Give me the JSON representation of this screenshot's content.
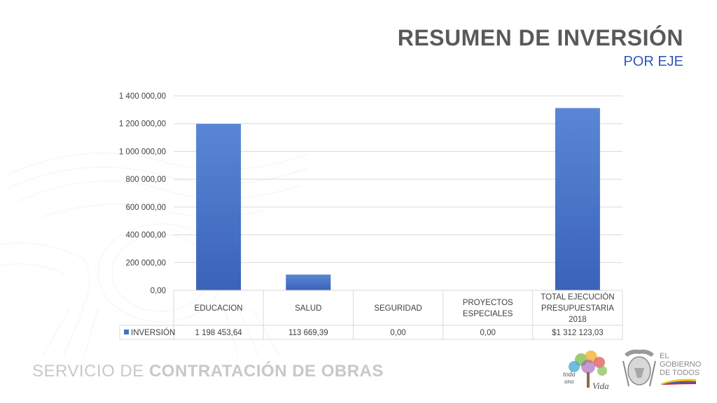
{
  "slide": {
    "title": "RESUMEN DE INVERSIÓN",
    "subtitle": "POR EJE"
  },
  "footer": {
    "org_prefix": "SERVICIO DE",
    "org_bold": "CONTRATACIÓN DE OBRAS",
    "logo1_line1": "toda",
    "logo1_line2": "una",
    "logo1_line3": "Vida",
    "logo2_line1": "EL",
    "logo2_line2": "GOBIERNO",
    "logo2_line3": "DE TODOS"
  },
  "colors": {
    "bar": "#4472c4",
    "bar_dark": "#3a63b8",
    "title": "#595959",
    "subtitle": "#2e58b8",
    "grid": "#d9d9d9"
  },
  "chart_data": {
    "type": "bar",
    "title": "",
    "xlabel": "",
    "ylabel": "",
    "ylim": [
      0,
      1400000
    ],
    "yticks": [
      0,
      200000,
      400000,
      600000,
      800000,
      1000000,
      1200000,
      1400000
    ],
    "ytick_labels": [
      "0,00",
      "200 000,00",
      "400 000,00",
      "600 000,00",
      "800 000,00",
      "1 000 000,00",
      "1 200 000,00",
      "1 400 000,00"
    ],
    "categories": [
      [
        "EDUCACION"
      ],
      [
        "SALUD"
      ],
      [
        "SEGURIDAD"
      ],
      [
        "PROYECTOS",
        "ESPECIALES"
      ],
      [
        "TOTAL EJECUCIÓN",
        "PRESUPUESTARIA",
        "2018"
      ]
    ],
    "series": [
      {
        "name": "INVERSIÓN",
        "values": [
          1198453.64,
          113669.39,
          0,
          0,
          1312123.03
        ],
        "value_labels": [
          "1 198 453,64",
          "113 669,39",
          "0,00",
          "0,00",
          "$1 312 123,03"
        ]
      }
    ],
    "grid": true,
    "legend": "data-table"
  }
}
